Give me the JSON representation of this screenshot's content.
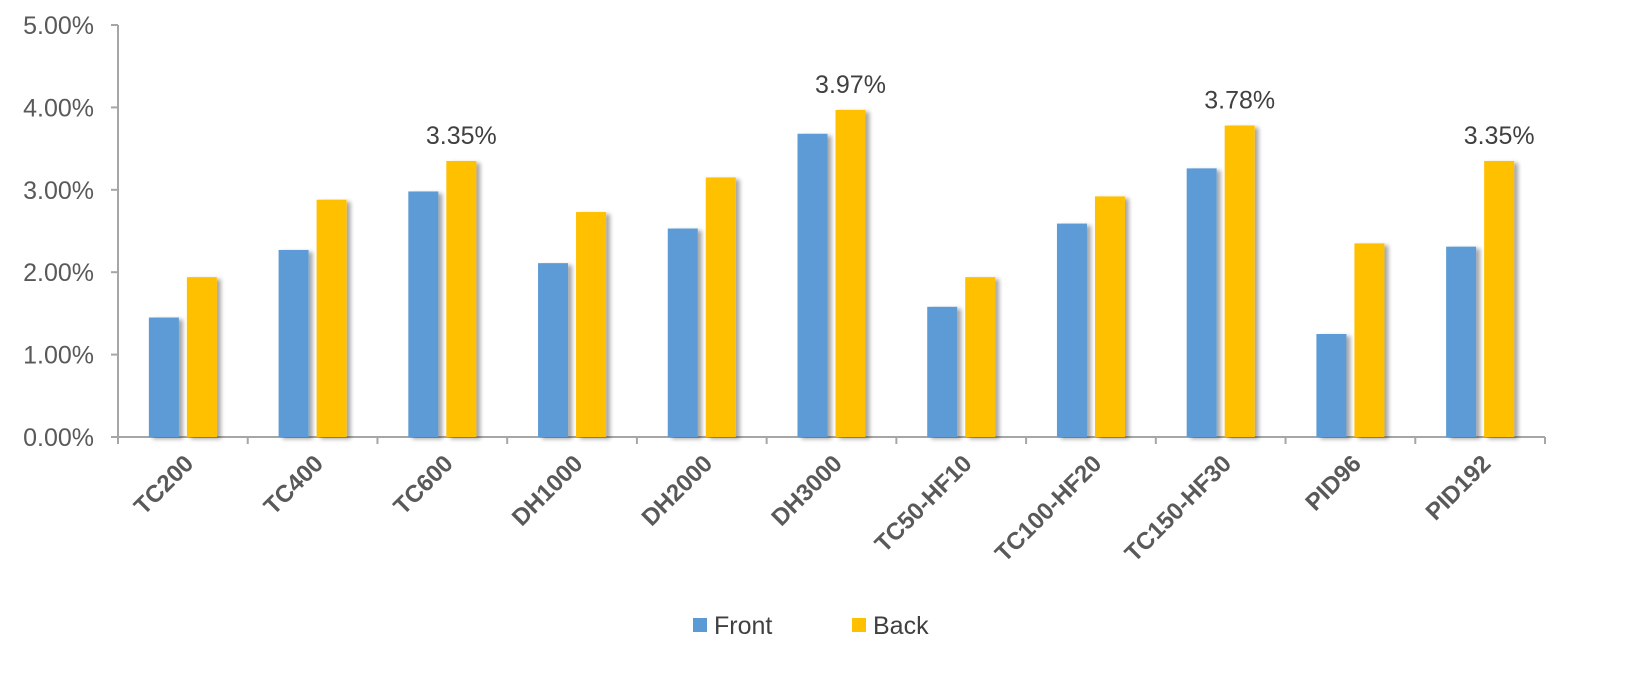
{
  "chart_data": {
    "type": "bar",
    "categories": [
      "TC200",
      "TC400",
      "TC600",
      "DH1000",
      "DH2000",
      "DH3000",
      "TC50-HF10",
      "TC100-HF20",
      "TC150-HF30",
      "PID96",
      "PID192"
    ],
    "series": [
      {
        "name": "Front",
        "color": "#5B9BD5",
        "values": [
          1.45,
          2.27,
          2.98,
          2.11,
          2.53,
          3.68,
          1.58,
          2.59,
          3.26,
          1.25,
          2.31
        ]
      },
      {
        "name": "Back",
        "color": "#FFC000",
        "values": [
          1.94,
          2.88,
          3.35,
          2.73,
          3.15,
          3.97,
          1.94,
          2.92,
          3.78,
          2.35,
          3.35
        ]
      }
    ],
    "y_ticks": [
      "0.00%",
      "1.00%",
      "2.00%",
      "3.00%",
      "4.00%",
      "5.00%"
    ],
    "data_labels": [
      {
        "category": "TC600",
        "series": "Back",
        "text": "3.35%"
      },
      {
        "category": "DH3000",
        "series": "Back",
        "text": "3.97%"
      },
      {
        "category": "TC150-HF30",
        "series": "Back",
        "text": "3.78%"
      },
      {
        "category": "PID192",
        "series": "Back",
        "text": "3.35%"
      }
    ],
    "ylim": [
      0,
      5
    ],
    "y_unit": "%",
    "title": "",
    "xlabel": "",
    "ylabel": "",
    "grid": false,
    "legend_position": "bottom-center",
    "axis_color": "#A6A6A6",
    "text_color": "#595959"
  }
}
